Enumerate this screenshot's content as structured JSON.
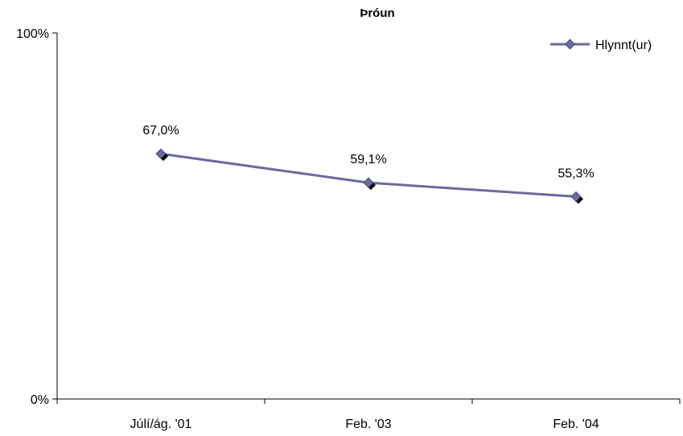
{
  "chart_data": {
    "type": "line",
    "title": "Þróun",
    "categories": [
      "Júlí/ág. '01",
      "Feb. '03",
      "Feb. '04"
    ],
    "series": [
      {
        "name": "Hlynnt(ur)",
        "values": [
          67.0,
          59.1,
          55.3
        ],
        "color": "#6b6b9e",
        "marker": "diamond"
      }
    ],
    "data_labels": [
      "67,0%",
      "59,1%",
      "55,3%"
    ],
    "y_tick_labels": [
      "0%",
      "100%"
    ],
    "ylim": [
      0,
      100
    ],
    "legend_position": "top-right",
    "grid": false
  }
}
